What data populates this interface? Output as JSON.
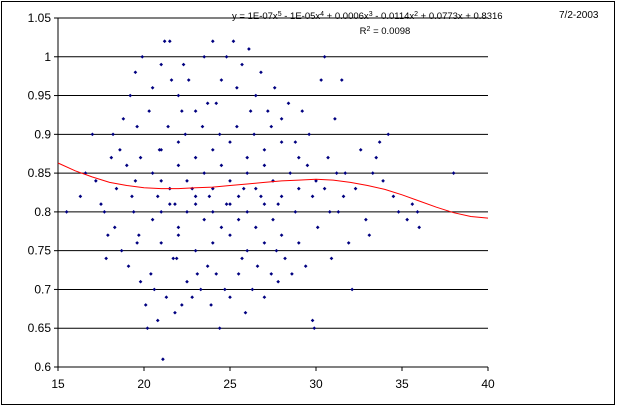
{
  "chart_data": {
    "type": "scatter",
    "xlim": [
      15,
      40
    ],
    "ylim": [
      0.6,
      1.05
    ],
    "x_ticks": [
      15,
      20,
      25,
      30,
      35,
      40
    ],
    "y_ticks": [
      0.6,
      0.65,
      0.7,
      0.75,
      0.8,
      0.85,
      0.9,
      0.95,
      1,
      1.05
    ],
    "x_tick_labels": [
      "15",
      "20",
      "25",
      "30",
      "35",
      "40"
    ],
    "y_tick_labels": [
      "0.6",
      "0.65",
      "0.7",
      "0.75",
      "0.8",
      "0.85",
      "0.9",
      "0.95",
      "1",
      "1.05"
    ],
    "grid": {
      "horizontal": true,
      "vertical": false
    },
    "marker_color": "#000080",
    "trendline_color": "#ff0000",
    "trendline": {
      "type": "polynomial",
      "order": 5,
      "equation_parts": [
        {
          "t": "y = 1E-07x"
        },
        {
          "sup": "5"
        },
        {
          "t": " - 1E-05x"
        },
        {
          "sup": "4"
        },
        {
          "t": " + 0.0006x"
        },
        {
          "sup": "3"
        },
        {
          "t": " - 0.0114x"
        },
        {
          "sup": "2"
        },
        {
          "t": " + 0.0773x + 0.8316"
        }
      ],
      "r_squared_parts": [
        {
          "t": "R"
        },
        {
          "sup": "2"
        },
        {
          "t": " = 0.0098"
        }
      ],
      "curve": [
        [
          15,
          0.863
        ],
        [
          16,
          0.853
        ],
        [
          17,
          0.845
        ],
        [
          18,
          0.838
        ],
        [
          19,
          0.834
        ],
        [
          20,
          0.831
        ],
        [
          21,
          0.83
        ],
        [
          22,
          0.83
        ],
        [
          23,
          0.831
        ],
        [
          24,
          0.832
        ],
        [
          25,
          0.834
        ],
        [
          26,
          0.836
        ],
        [
          27,
          0.838
        ],
        [
          28,
          0.84
        ],
        [
          29,
          0.841
        ],
        [
          30,
          0.842
        ],
        [
          31,
          0.841
        ],
        [
          32,
          0.838
        ],
        [
          33,
          0.834
        ],
        [
          34,
          0.829
        ],
        [
          35,
          0.822
        ],
        [
          36,
          0.814
        ],
        [
          37,
          0.806
        ],
        [
          38,
          0.799
        ],
        [
          39,
          0.794
        ],
        [
          40,
          0.792
        ]
      ]
    },
    "points": [
      [
        15.5,
        0.8
      ],
      [
        16.3,
        0.82
      ],
      [
        16.6,
        0.85
      ],
      [
        17,
        0.9
      ],
      [
        17.2,
        0.84
      ],
      [
        17.5,
        0.81
      ],
      [
        17.7,
        0.8
      ],
      [
        17.8,
        0.74
      ],
      [
        17.9,
        0.77
      ],
      [
        18.1,
        0.87
      ],
      [
        18.2,
        0.9
      ],
      [
        18.3,
        0.78
      ],
      [
        18.4,
        0.83
      ],
      [
        18.6,
        0.88
      ],
      [
        18.7,
        0.75
      ],
      [
        18.8,
        0.92
      ],
      [
        19,
        0.86
      ],
      [
        19.1,
        0.73
      ],
      [
        19.2,
        0.95
      ],
      [
        19.3,
        0.82
      ],
      [
        19.5,
        0.98
      ],
      [
        19.6,
        0.91
      ],
      [
        19.7,
        0.77
      ],
      [
        19.8,
        0.71
      ],
      [
        19.9,
        1
      ],
      [
        20.1,
        0.68
      ],
      [
        20.2,
        0.65
      ],
      [
        20.3,
        0.93
      ],
      [
        20.4,
        0.72
      ],
      [
        20.5,
        0.96
      ],
      [
        20.6,
        0.7
      ],
      [
        20.8,
        0.66
      ],
      [
        20.9,
        0.88
      ],
      [
        21,
        0.99
      ],
      [
        21.1,
        0.61
      ],
      [
        21.2,
        1.02
      ],
      [
        21.3,
        0.69
      ],
      [
        21.5,
        1.02
      ],
      [
        21.6,
        0.97
      ],
      [
        21.8,
        0.67
      ],
      [
        21.9,
        0.74
      ],
      [
        22,
        0.95
      ],
      [
        22.2,
        0.68
      ],
      [
        22.3,
        0.99
      ],
      [
        22.5,
        0.71
      ],
      [
        22.6,
        0.97
      ],
      [
        22.8,
        0.69
      ],
      [
        23,
        0.93
      ],
      [
        23.1,
        0.72
      ],
      [
        23.3,
        0.7
      ],
      [
        23.5,
        1
      ],
      [
        23.7,
        0.94
      ],
      [
        23.9,
        0.68
      ],
      [
        24,
        1.02
      ],
      [
        24.2,
        0.72
      ],
      [
        24.4,
        0.65
      ],
      [
        24.5,
        0.97
      ],
      [
        24.7,
        0.7
      ],
      [
        24.8,
        1
      ],
      [
        25,
        0.69
      ],
      [
        25.2,
        1.02
      ],
      [
        25.4,
        0.96
      ],
      [
        25.5,
        0.72
      ],
      [
        25.7,
        0.99
      ],
      [
        25.9,
        0.67
      ],
      [
        26.1,
        1.01
      ],
      [
        26.3,
        0.7
      ],
      [
        26.5,
        0.95
      ],
      [
        26.6,
        0.73
      ],
      [
        26.8,
        0.98
      ],
      [
        27,
        0.69
      ],
      [
        27.2,
        0.93
      ],
      [
        27.4,
        0.72
      ],
      [
        27.6,
        0.96
      ],
      [
        27.8,
        0.71
      ],
      [
        28,
        0.92
      ],
      [
        28.2,
        0.74
      ],
      [
        28.4,
        0.94
      ],
      [
        28.6,
        0.72
      ],
      [
        28.8,
        0.89
      ],
      [
        29,
        0.76
      ],
      [
        29.2,
        0.93
      ],
      [
        29.4,
        0.73
      ],
      [
        29.6,
        0.9
      ],
      [
        29.8,
        0.66
      ],
      [
        29.9,
        0.65
      ],
      [
        30.1,
        0.78
      ],
      [
        30.3,
        0.97
      ],
      [
        30.5,
        1
      ],
      [
        30.7,
        0.87
      ],
      [
        30.9,
        0.74
      ],
      [
        31.1,
        0.92
      ],
      [
        31.3,
        0.8
      ],
      [
        31.5,
        0.97
      ],
      [
        31.7,
        0.85
      ],
      [
        31.9,
        0.76
      ],
      [
        32.1,
        0.7
      ],
      [
        32.3,
        0.83
      ],
      [
        32.6,
        0.88
      ],
      [
        32.9,
        0.79
      ],
      [
        33.1,
        0.77
      ],
      [
        33.3,
        0.85
      ],
      [
        33.5,
        0.87
      ],
      [
        33.7,
        0.89
      ],
      [
        33.9,
        0.84
      ],
      [
        34.2,
        0.9
      ],
      [
        34.5,
        0.82
      ],
      [
        34.8,
        0.8
      ],
      [
        35.3,
        0.79
      ],
      [
        35.6,
        0.81
      ],
      [
        35.9,
        0.8
      ],
      [
        36,
        0.78
      ],
      [
        38,
        0.85
      ],
      [
        20.5,
        0.85
      ],
      [
        21,
        0.84
      ],
      [
        21.5,
        0.83
      ],
      [
        22,
        0.86
      ],
      [
        22.5,
        0.84
      ],
      [
        23,
        0.82
      ],
      [
        23.5,
        0.85
      ],
      [
        24,
        0.83
      ],
      [
        24.5,
        0.86
      ],
      [
        25,
        0.84
      ],
      [
        25.5,
        0.82
      ],
      [
        26,
        0.85
      ],
      [
        26.5,
        0.83
      ],
      [
        27,
        0.86
      ],
      [
        27.5,
        0.84
      ],
      [
        28,
        0.82
      ],
      [
        28.5,
        0.85
      ],
      [
        29,
        0.83
      ],
      [
        29.5,
        0.86
      ],
      [
        30,
        0.84
      ],
      [
        20.5,
        0.79
      ],
      [
        21,
        0.8
      ],
      [
        21.5,
        0.81
      ],
      [
        22,
        0.78
      ],
      [
        22.5,
        0.8
      ],
      [
        23,
        0.81
      ],
      [
        23.5,
        0.79
      ],
      [
        24,
        0.8
      ],
      [
        24.5,
        0.78
      ],
      [
        25,
        0.81
      ],
      [
        25.5,
        0.79
      ],
      [
        26,
        0.8
      ],
      [
        26.5,
        0.78
      ],
      [
        27,
        0.81
      ],
      [
        27.5,
        0.79
      ],
      [
        21,
        0.76
      ],
      [
        22,
        0.77
      ],
      [
        23,
        0.75
      ],
      [
        24,
        0.76
      ],
      [
        25,
        0.77
      ],
      [
        26,
        0.75
      ],
      [
        27,
        0.76
      ],
      [
        28,
        0.77
      ],
      [
        21,
        0.88
      ],
      [
        22,
        0.89
      ],
      [
        23,
        0.87
      ],
      [
        24,
        0.88
      ],
      [
        25,
        0.89
      ],
      [
        26,
        0.87
      ],
      [
        27,
        0.88
      ],
      [
        28,
        0.89
      ],
      [
        29,
        0.87
      ],
      [
        21.4,
        0.91
      ],
      [
        22.4,
        0.9
      ],
      [
        23.4,
        0.91
      ],
      [
        24.4,
        0.9
      ],
      [
        25.4,
        0.91
      ],
      [
        26.4,
        0.9
      ],
      [
        27.4,
        0.91
      ],
      [
        20.8,
        0.82
      ],
      [
        21.8,
        0.81
      ],
      [
        22.8,
        0.83
      ],
      [
        23.8,
        0.82
      ],
      [
        24.8,
        0.81
      ],
      [
        25.8,
        0.83
      ],
      [
        26.8,
        0.82
      ],
      [
        27.8,
        0.81
      ],
      [
        28.8,
        0.8
      ],
      [
        29.8,
        0.82
      ],
      [
        19.5,
        0.84
      ],
      [
        19.8,
        0.87
      ],
      [
        19.4,
        0.8
      ],
      [
        19.6,
        0.76
      ],
      [
        30.5,
        0.83
      ],
      [
        30.8,
        0.8
      ],
      [
        31.2,
        0.85
      ],
      [
        31.6,
        0.82
      ],
      [
        22.2,
        0.93
      ],
      [
        24.2,
        0.94
      ],
      [
        26.2,
        0.93
      ],
      [
        21.7,
        0.74
      ],
      [
        23.7,
        0.73
      ],
      [
        25.7,
        0.74
      ],
      [
        27.7,
        0.75
      ]
    ]
  },
  "annotation": {
    "date": "7/2-2003"
  }
}
